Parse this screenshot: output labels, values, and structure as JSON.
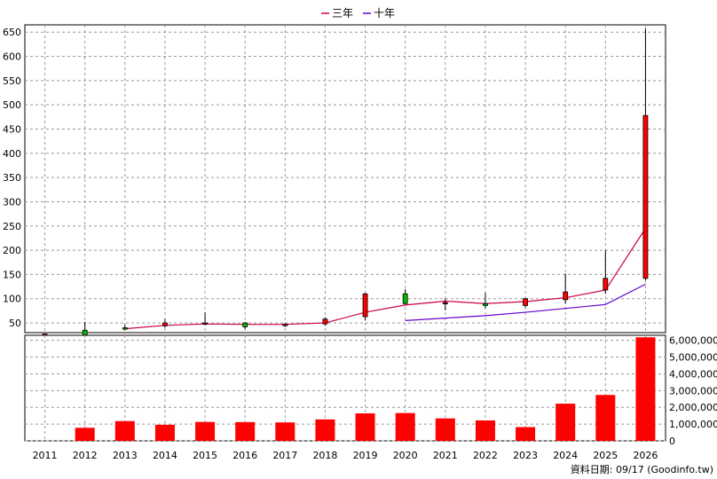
{
  "chart_data": {
    "type": "candlestick",
    "legend": [
      {
        "name": "三年",
        "color": "#cc0044"
      },
      {
        "name": "十年",
        "color": "#6600cc"
      }
    ],
    "legend_placement": "top-center",
    "grid": true,
    "years": [
      "2011",
      "2012",
      "2013",
      "2014",
      "2015",
      "2016",
      "2017",
      "2018",
      "2019",
      "2020",
      "2021",
      "2022",
      "2023",
      "2024",
      "2025",
      "2026"
    ],
    "price": {
      "ylim": [
        30,
        665
      ],
      "yticks": [
        50,
        100,
        150,
        200,
        250,
        300,
        350,
        400,
        450,
        500,
        550,
        600,
        650
      ],
      "ohlc": [
        {
          "o": 27,
          "h": 28,
          "l": 26,
          "c": 27
        },
        {
          "o": 35,
          "h": 52,
          "l": 30,
          "c": 25
        },
        {
          "o": 40,
          "h": 46,
          "l": 35,
          "c": 38
        },
        {
          "o": 44,
          "h": 58,
          "l": 40,
          "c": 50
        },
        {
          "o": 48,
          "h": 72,
          "l": 45,
          "c": 50
        },
        {
          "o": 50,
          "h": 52,
          "l": 38,
          "c": 42
        },
        {
          "o": 46,
          "h": 50,
          "l": 42,
          "c": 47
        },
        {
          "o": 48,
          "h": 62,
          "l": 44,
          "c": 58
        },
        {
          "o": 63,
          "h": 112,
          "l": 55,
          "c": 110
        },
        {
          "o": 110,
          "h": 120,
          "l": 88,
          "c": 90
        },
        {
          "o": 90,
          "h": 100,
          "l": 76,
          "c": 92
        },
        {
          "o": 90,
          "h": 112,
          "l": 80,
          "c": 86
        },
        {
          "o": 86,
          "h": 102,
          "l": 82,
          "c": 100
        },
        {
          "o": 98,
          "h": 152,
          "l": 90,
          "c": 114
        },
        {
          "o": 118,
          "h": 200,
          "l": 110,
          "c": 142
        },
        {
          "o": 142,
          "h": 658,
          "l": 138,
          "c": 478
        }
      ],
      "series": [
        {
          "name": "三年",
          "values": [
            null,
            null,
            38,
            45,
            48,
            47,
            47,
            50,
            72,
            87,
            95,
            90,
            94,
            102,
            118,
            245
          ]
        },
        {
          "name": "十年",
          "values": [
            null,
            null,
            null,
            null,
            null,
            null,
            null,
            null,
            null,
            55,
            60,
            65,
            72,
            80,
            88,
            130
          ]
        }
      ]
    },
    "volume": {
      "ylim": [
        0,
        6300000
      ],
      "yticks": [
        0,
        1000000,
        2000000,
        3000000,
        4000000,
        5000000,
        6000000
      ],
      "ytick_labels": [
        "0",
        "1,000,000",
        "2,000,000",
        "3,000,000",
        "4,000,000",
        "5,000,000",
        "6,000,000"
      ],
      "values": [
        0,
        780000,
        1180000,
        960000,
        1130000,
        1120000,
        1100000,
        1280000,
        1640000,
        1660000,
        1340000,
        1220000,
        820000,
        2220000,
        2740000,
        6180000
      ],
      "bar_color": "#ff0000"
    },
    "source_note": "資料日期: 09/17 (Goodinfo.tw)"
  }
}
